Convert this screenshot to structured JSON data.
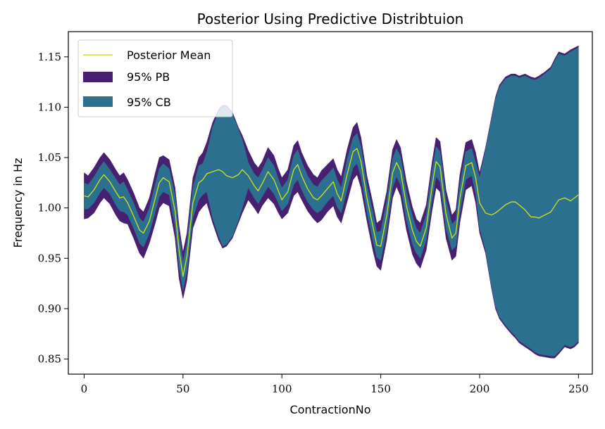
{
  "chart_data": {
    "type": "area",
    "title": "Posterior Using Predictive Distribtuion",
    "xlabel": "ContractionNo",
    "ylabel": "Frequency in Hz",
    "xlim": [
      -8,
      257
    ],
    "ylim": [
      0.835,
      1.175
    ],
    "xticks": [
      0,
      50,
      100,
      150,
      200,
      250
    ],
    "yticks": [
      0.85,
      0.9,
      0.95,
      1.0,
      1.05,
      1.1,
      1.15
    ],
    "grid": false,
    "legend_position": "top-left",
    "series": [
      {
        "name": "Posterior Mean",
        "kind": "line",
        "color": "#d2e21b",
        "x": [
          0,
          2,
          5,
          8,
          10,
          13,
          16,
          18,
          20,
          22,
          25,
          28,
          30,
          33,
          36,
          38,
          40,
          43,
          46,
          48,
          50,
          52,
          55,
          58,
          60,
          62,
          65,
          68,
          70,
          72,
          75,
          78,
          80,
          83,
          86,
          88,
          90,
          93,
          96,
          98,
          100,
          103,
          106,
          108,
          110,
          113,
          116,
          118,
          120,
          123,
          126,
          128,
          130,
          133,
          136,
          138,
          140,
          143,
          146,
          148,
          150,
          153,
          156,
          158,
          160,
          163,
          166,
          168,
          170,
          173,
          176,
          178,
          180,
          183,
          186,
          188,
          190,
          193,
          196,
          198,
          200,
          203,
          206,
          208,
          210,
          213,
          216,
          218,
          220,
          223,
          226,
          228,
          230,
          233,
          236,
          238,
          240,
          243,
          246,
          248,
          250
        ],
        "values": [
          1.012,
          1.011,
          1.018,
          1.028,
          1.033,
          1.026,
          1.016,
          1.01,
          1.011,
          1.005,
          0.992,
          0.978,
          0.975,
          0.987,
          1.01,
          1.025,
          1.03,
          1.026,
          0.997,
          0.958,
          0.932,
          0.952,
          1.005,
          1.025,
          1.028,
          1.034,
          1.036,
          1.038,
          1.036,
          1.032,
          1.03,
          1.033,
          1.038,
          1.032,
          1.022,
          1.017,
          1.024,
          1.036,
          1.028,
          1.018,
          1.008,
          1.016,
          1.038,
          1.043,
          1.032,
          1.019,
          1.01,
          1.008,
          1.012,
          1.019,
          1.026,
          1.014,
          1.007,
          1.033,
          1.056,
          1.059,
          1.046,
          1.01,
          0.982,
          0.963,
          0.962,
          0.992,
          1.035,
          1.045,
          1.037,
          1.002,
          0.978,
          0.967,
          0.962,
          0.98,
          1.022,
          1.046,
          1.041,
          0.994,
          0.97,
          0.975,
          1.009,
          1.042,
          1.045,
          1.03,
          1.005,
          0.995,
          0.993,
          0.995,
          0.998,
          1.003,
          1.006,
          1.006,
          1.003,
          0.998,
          0.991,
          0.991,
          0.99,
          0.993,
          0.996,
          1.002,
          1.008,
          1.01,
          1.007,
          1.01,
          1.013
        ]
      },
      {
        "name": "95% PB",
        "kind": "band",
        "color": "#482071",
        "x": [
          0,
          2,
          5,
          8,
          10,
          13,
          16,
          18,
          20,
          22,
          25,
          28,
          30,
          33,
          36,
          38,
          40,
          43,
          46,
          48,
          50,
          52,
          55,
          58,
          60,
          62,
          65,
          68,
          70,
          72,
          75,
          78,
          80,
          83,
          86,
          88,
          90,
          93,
          96,
          98,
          100,
          103,
          106,
          108,
          110,
          113,
          116,
          118,
          120,
          123,
          126,
          128,
          130,
          133,
          136,
          138,
          140,
          143,
          146,
          148,
          150,
          153,
          156,
          158,
          160,
          163,
          166,
          168,
          170,
          173,
          176,
          178,
          180,
          183,
          186,
          188,
          190,
          193,
          196,
          198,
          200,
          203,
          206,
          208,
          210,
          213,
          216,
          218,
          220,
          223,
          226,
          228,
          230,
          233,
          236,
          238,
          240,
          243,
          246,
          248,
          250
        ],
        "lower": [
          0.989,
          0.99,
          0.995,
          1.005,
          1.01,
          1.004,
          0.993,
          0.987,
          0.985,
          0.984,
          0.97,
          0.955,
          0.95,
          0.965,
          0.985,
          1.0,
          1.005,
          1.002,
          0.97,
          0.93,
          0.91,
          0.928,
          0.98,
          0.996,
          1.001,
          1.005,
          0.985,
          0.968,
          0.96,
          0.962,
          0.97,
          0.985,
          0.995,
          1.008,
          1.0,
          0.994,
          1.002,
          1.01,
          1.004,
          0.996,
          0.989,
          0.995,
          1.012,
          1.016,
          1.008,
          0.997,
          0.989,
          0.985,
          0.988,
          0.996,
          1.002,
          0.991,
          0.985,
          1.006,
          1.028,
          1.033,
          1.02,
          0.987,
          0.958,
          0.942,
          0.938,
          0.968,
          1.01,
          1.021,
          1.012,
          0.978,
          0.954,
          0.945,
          0.94,
          0.958,
          0.998,
          1.02,
          1.016,
          0.97,
          0.948,
          0.952,
          0.985,
          1.018,
          1.022,
          1.005,
          0.975,
          0.955,
          0.92,
          0.9,
          0.89,
          0.882,
          0.875,
          0.871,
          0.866,
          0.862,
          0.858,
          0.855,
          0.853,
          0.852,
          0.851,
          0.851,
          0.855,
          0.862,
          0.86,
          0.862,
          0.866
        ],
        "upper": [
          1.035,
          1.032,
          1.04,
          1.05,
          1.055,
          1.048,
          1.038,
          1.032,
          1.035,
          1.028,
          1.015,
          1.0,
          0.996,
          1.01,
          1.035,
          1.05,
          1.052,
          1.048,
          1.02,
          0.982,
          0.956,
          0.975,
          1.03,
          1.05,
          1.055,
          1.065,
          1.085,
          1.098,
          1.102,
          1.102,
          1.095,
          1.08,
          1.072,
          1.057,
          1.045,
          1.04,
          1.046,
          1.06,
          1.052,
          1.04,
          1.03,
          1.038,
          1.062,
          1.067,
          1.055,
          1.042,
          1.033,
          1.03,
          1.037,
          1.043,
          1.049,
          1.038,
          1.031,
          1.058,
          1.08,
          1.085,
          1.07,
          1.032,
          1.005,
          0.985,
          0.988,
          1.016,
          1.058,
          1.068,
          1.06,
          1.026,
          1.001,
          0.989,
          0.985,
          1.003,
          1.046,
          1.07,
          1.066,
          1.018,
          0.993,
          0.998,
          1.033,
          1.065,
          1.068,
          1.055,
          1.035,
          1.06,
          1.09,
          1.11,
          1.122,
          1.13,
          1.133,
          1.133,
          1.131,
          1.133,
          1.13,
          1.129,
          1.131,
          1.135,
          1.14,
          1.148,
          1.155,
          1.153,
          1.157,
          1.159,
          1.161
        ]
      },
      {
        "name": "95% CB",
        "kind": "band",
        "color": "#2b708e",
        "x": [
          0,
          2,
          5,
          8,
          10,
          13,
          16,
          18,
          20,
          22,
          25,
          28,
          30,
          33,
          36,
          38,
          40,
          43,
          46,
          48,
          50,
          52,
          55,
          58,
          60,
          62,
          65,
          68,
          70,
          72,
          75,
          78,
          80,
          83,
          86,
          88,
          90,
          93,
          96,
          98,
          100,
          103,
          106,
          108,
          110,
          113,
          116,
          118,
          120,
          123,
          126,
          128,
          130,
          133,
          136,
          138,
          140,
          143,
          146,
          148,
          150,
          153,
          156,
          158,
          160,
          163,
          166,
          168,
          170,
          173,
          176,
          178,
          180,
          183,
          186,
          188,
          190,
          193,
          196,
          198,
          200,
          203,
          206,
          208,
          210,
          213,
          216,
          218,
          220,
          223,
          226,
          228,
          230,
          233,
          236,
          238,
          240,
          243,
          246,
          248,
          250
        ],
        "lower": [
          0.999,
          0.999,
          1.005,
          1.015,
          1.02,
          1.014,
          1.003,
          0.997,
          0.996,
          0.993,
          0.98,
          0.965,
          0.961,
          0.975,
          0.996,
          1.011,
          1.016,
          1.013,
          0.982,
          0.942,
          0.918,
          0.938,
          0.99,
          1.008,
          1.013,
          1.016,
          0.99,
          0.972,
          0.962,
          0.964,
          0.972,
          0.988,
          1.0,
          1.02,
          1.01,
          1.004,
          1.011,
          1.021,
          1.014,
          1.006,
          0.997,
          1.004,
          1.023,
          1.028,
          1.018,
          1.006,
          0.998,
          0.995,
          0.998,
          1.006,
          1.012,
          1.001,
          0.995,
          1.018,
          1.04,
          1.044,
          1.031,
          0.996,
          0.968,
          0.951,
          0.948,
          0.978,
          1.02,
          1.031,
          1.023,
          0.988,
          0.964,
          0.955,
          0.95,
          0.968,
          1.008,
          1.031,
          1.026,
          0.98,
          0.958,
          0.962,
          0.995,
          1.028,
          1.032,
          1.015,
          0.98,
          0.958,
          0.922,
          0.902,
          0.892,
          0.884,
          0.877,
          0.873,
          0.868,
          0.864,
          0.86,
          0.857,
          0.855,
          0.854,
          0.853,
          0.853,
          0.857,
          0.864,
          0.862,
          0.864,
          0.868
        ],
        "upper": [
          1.025,
          1.023,
          1.031,
          1.041,
          1.046,
          1.038,
          1.029,
          1.023,
          1.026,
          1.018,
          1.005,
          0.99,
          0.986,
          1.0,
          1.024,
          1.039,
          1.044,
          1.039,
          1.012,
          0.974,
          0.946,
          0.965,
          1.02,
          1.042,
          1.044,
          1.055,
          1.08,
          1.095,
          1.1,
          1.1,
          1.093,
          1.078,
          1.068,
          1.045,
          1.034,
          1.03,
          1.037,
          1.05,
          1.042,
          1.03,
          1.02,
          1.028,
          1.052,
          1.058,
          1.046,
          1.032,
          1.023,
          1.021,
          1.027,
          1.033,
          1.04,
          1.028,
          1.02,
          1.048,
          1.07,
          1.074,
          1.061,
          1.023,
          0.996,
          0.976,
          0.977,
          1.006,
          1.049,
          1.059,
          1.051,
          1.016,
          0.992,
          0.98,
          0.975,
          0.993,
          1.037,
          1.061,
          1.056,
          1.008,
          0.984,
          0.988,
          1.023,
          1.056,
          1.059,
          1.045,
          1.03,
          1.058,
          1.088,
          1.108,
          1.12,
          1.128,
          1.131,
          1.131,
          1.129,
          1.131,
          1.128,
          1.127,
          1.129,
          1.133,
          1.138,
          1.146,
          1.153,
          1.151,
          1.155,
          1.157,
          1.159
        ]
      }
    ]
  }
}
